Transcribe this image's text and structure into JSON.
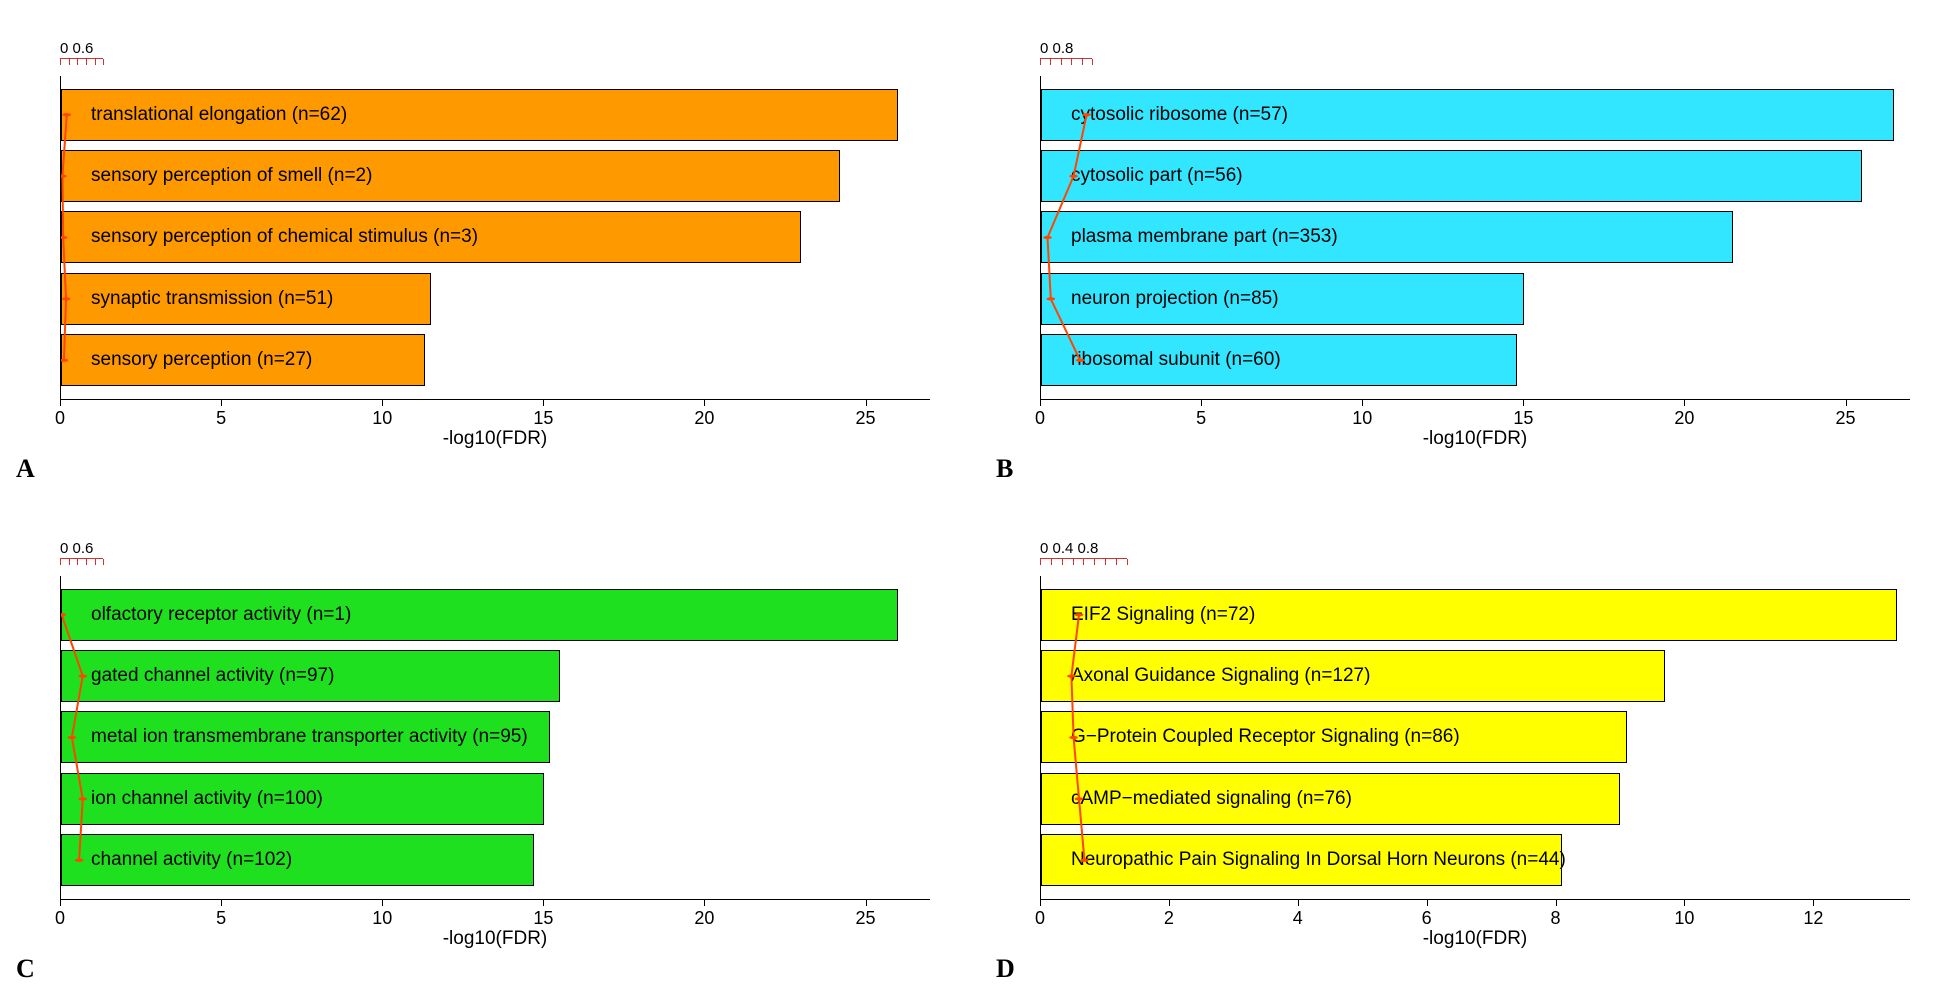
{
  "global": {
    "xlabel": "-log10(FDR)",
    "bar_border": "#000000",
    "bar_border_width": 1,
    "text_color": "#000000",
    "label_fontsize": 19,
    "tick_fontsize": 18,
    "panel_letter_fontsize": 26,
    "overlay_line_color": "#ff4500",
    "overlay_marker_color": "#ff4500",
    "overlay_marker_radius": 3,
    "top_scale_color": "#cc3333",
    "background_color": "#ffffff"
  },
  "panels": [
    {
      "letter": "A",
      "type": "hbar",
      "bar_color": "#ff9900",
      "xlim": [
        0,
        27
      ],
      "xticks": [
        0,
        5,
        10,
        15,
        20,
        25
      ],
      "top_scale": {
        "labels": [
          "0",
          "0.6"
        ],
        "ticks": 6,
        "width_frac": 0.05
      },
      "items": [
        {
          "label": "translational elongation (n=62)",
          "value": 26.0,
          "overlay": 0.08
        },
        {
          "label": "sensory perception of smell (n=2)",
          "value": 24.2,
          "overlay": 0.02
        },
        {
          "label": "sensory perception of chemical stimulus (n=3)",
          "value": 23.0,
          "overlay": 0.03
        },
        {
          "label": "synaptic transmission (n=51)",
          "value": 11.5,
          "overlay": 0.07
        },
        {
          "label": "sensory perception (n=27)",
          "value": 11.3,
          "overlay": 0.04
        }
      ]
    },
    {
      "letter": "B",
      "type": "hbar",
      "bar_color": "#33e6ff",
      "xlim": [
        0,
        27
      ],
      "xticks": [
        0,
        5,
        10,
        15,
        20,
        25
      ],
      "top_scale": {
        "labels": [
          "0",
          "0.8"
        ],
        "ticks": 6,
        "width_frac": 0.06
      },
      "items": [
        {
          "label": "cytosolic ribosome (n=57)",
          "value": 26.5,
          "overlay": 0.7
        },
        {
          "label": "cytosolic part (n=56)",
          "value": 25.5,
          "overlay": 0.5
        },
        {
          "label": "plasma membrane part (n=353)",
          "value": 21.5,
          "overlay": 0.1
        },
        {
          "label": "neuron projection (n=85)",
          "value": 15.0,
          "overlay": 0.15
        },
        {
          "label": "ribosomal subunit (n=60)",
          "value": 14.8,
          "overlay": 0.6
        }
      ]
    },
    {
      "letter": "C",
      "type": "hbar",
      "bar_color": "#1ee01e",
      "xlim": [
        0,
        27
      ],
      "xticks": [
        0,
        5,
        10,
        15,
        20,
        25
      ],
      "top_scale": {
        "labels": [
          "0",
          "0.6"
        ],
        "ticks": 6,
        "width_frac": 0.05
      },
      "items": [
        {
          "label": "olfactory receptor activity (n=1)",
          "value": 26.0,
          "overlay": 0.01
        },
        {
          "label": "gated channel activity (n=97)",
          "value": 15.5,
          "overlay": 0.3
        },
        {
          "label": "metal ion transmembrane transporter activity (n=95)",
          "value": 15.2,
          "overlay": 0.15
        },
        {
          "label": "ion channel activity (n=100)",
          "value": 15.0,
          "overlay": 0.3
        },
        {
          "label": "channel activity (n=102)",
          "value": 14.7,
          "overlay": 0.25
        }
      ]
    },
    {
      "letter": "D",
      "type": "hbar",
      "bar_color": "#ffff00",
      "xlim": [
        0,
        13.5
      ],
      "xticks": [
        0,
        2,
        4,
        6,
        8,
        10,
        12
      ],
      "top_scale": {
        "labels": [
          "0",
          "0.4",
          "0.8"
        ],
        "ticks": 9,
        "width_frac": 0.1
      },
      "items": [
        {
          "label": "EIF2 Signaling (n=72)",
          "value": 13.3,
          "overlay": 0.35
        },
        {
          "label": "Axonal Guidance Signaling (n=127)",
          "value": 9.7,
          "overlay": 0.28
        },
        {
          "label": "G−Protein Coupled Receptor Signaling (n=86)",
          "value": 9.1,
          "overlay": 0.3
        },
        {
          "label": "cAMP−mediated signaling (n=76)",
          "value": 9.0,
          "overlay": 0.35
        },
        {
          "label": "Neuropathic Pain Signaling In Dorsal Horn Neurons (n=44)",
          "value": 8.1,
          "overlay": 0.4
        }
      ]
    }
  ]
}
